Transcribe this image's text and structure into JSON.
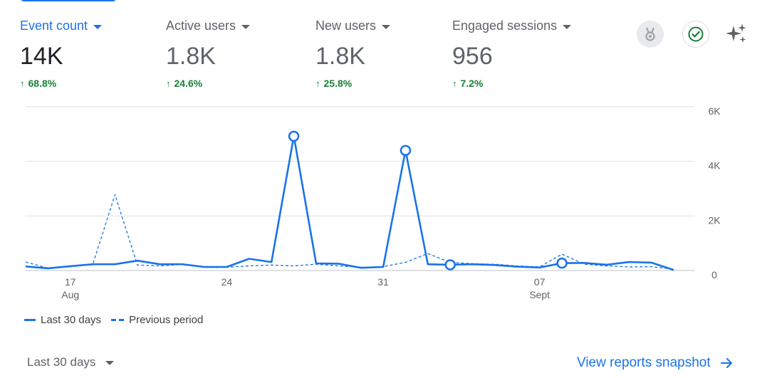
{
  "metrics": [
    {
      "label": "Event count",
      "value": "14K",
      "change": "68.8%",
      "active": true
    },
    {
      "label": "Active users",
      "value": "1.8K",
      "change": "24.6%",
      "active": false
    },
    {
      "label": "New users",
      "value": "1.8K",
      "change": "25.8%",
      "active": false
    },
    {
      "label": "Engaged sessions",
      "value": "956",
      "change": "7.2%",
      "active": false
    }
  ],
  "icons": {
    "badge": "ribbon-badge-icon",
    "check": "check-circle-icon",
    "sparkle": "sparkle-icon",
    "arrow": "arrow-right-icon",
    "up_arrow": "arrow-up-icon"
  },
  "colors": {
    "primary": "#1a73e8",
    "positive": "#188038",
    "muted": "#5f6368",
    "grid": "#dadce0"
  },
  "chart_data": {
    "type": "line",
    "x": [
      "Aug 15",
      "Aug 16",
      "Aug 17",
      "Aug 18",
      "Aug 19",
      "Aug 20",
      "Aug 21",
      "Aug 22",
      "Aug 23",
      "Aug 24",
      "Aug 25",
      "Aug 26",
      "Aug 27",
      "Aug 28",
      "Aug 29",
      "Aug 30",
      "Aug 31",
      "Sep 01",
      "Sep 02",
      "Sep 03",
      "Sep 04",
      "Sep 05",
      "Sep 06",
      "Sep 07",
      "Sep 08",
      "Sep 09",
      "Sep 10",
      "Sep 11",
      "Sep 12",
      "Sep 13"
    ],
    "series": [
      {
        "name": "Last 30 days",
        "style": "solid",
        "values": [
          150,
          80,
          160,
          230,
          230,
          360,
          230,
          230,
          130,
          130,
          430,
          310,
          4920,
          260,
          250,
          100,
          130,
          4400,
          230,
          210,
          230,
          200,
          140,
          110,
          270,
          280,
          210,
          310,
          290,
          20
        ],
        "markers": [
          12,
          17,
          19,
          24
        ]
      },
      {
        "name": "Previous period",
        "style": "dashed",
        "values": [
          310,
          90,
          140,
          210,
          2780,
          200,
          170,
          220,
          110,
          120,
          170,
          200,
          170,
          230,
          170,
          120,
          140,
          300,
          620,
          300,
          250,
          230,
          170,
          130,
          600,
          230,
          170,
          130,
          140,
          50
        ]
      }
    ],
    "x_ticks": [
      {
        "index": 2,
        "label": "17",
        "sub": "Aug"
      },
      {
        "index": 9,
        "label": "24",
        "sub": ""
      },
      {
        "index": 16,
        "label": "31",
        "sub": ""
      },
      {
        "index": 23,
        "label": "07",
        "sub": "Sept"
      }
    ],
    "y_ticks": [
      "0",
      "2K",
      "4K",
      "6K"
    ],
    "y_tick_values": [
      0,
      2000,
      4000,
      6000
    ],
    "ylim": [
      0,
      6000
    ],
    "grid": true
  },
  "legend": {
    "current": "Last 30 days",
    "previous": "Previous period"
  },
  "footer": {
    "range_label": "Last 30 days",
    "snapshot_label": "View reports snapshot"
  }
}
